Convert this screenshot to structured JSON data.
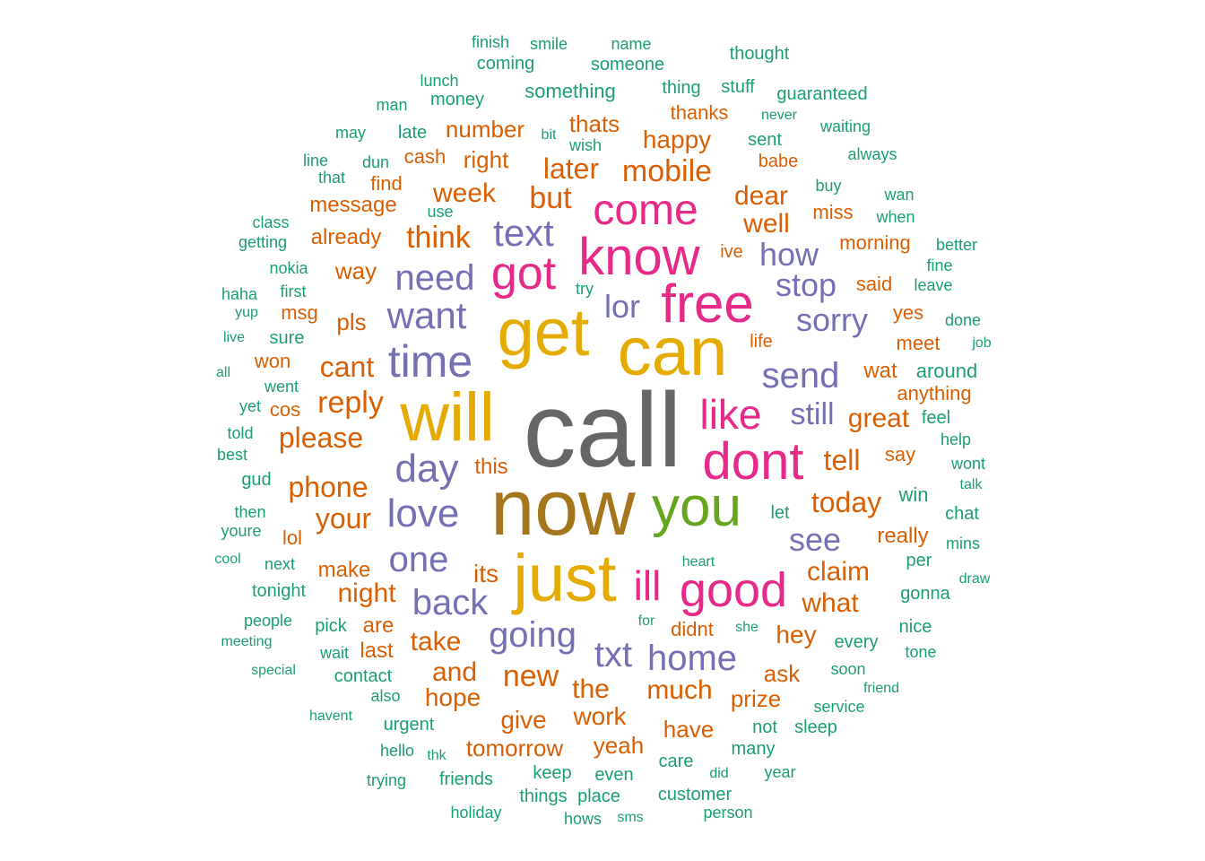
{
  "colors": {
    "c1": "#1b9e77",
    "c2": "#d95f02",
    "c3": "#7570b3",
    "c4": "#e7298a",
    "c5": "#66a61e",
    "c6": "#e6ab02",
    "c7": "#a6761d",
    "c8": "#666666"
  },
  "words": [
    {
      "text": "call",
      "color": "c8"
    },
    {
      "text": "now",
      "color": "c7"
    },
    {
      "text": "can",
      "color": "c6"
    },
    {
      "text": "get",
      "color": "c6"
    },
    {
      "text": "will",
      "color": "c6"
    },
    {
      "text": "just",
      "color": "c6"
    },
    {
      "text": "you",
      "color": "c5"
    },
    {
      "text": "free",
      "color": "c4"
    },
    {
      "text": "know",
      "color": "c4"
    },
    {
      "text": "dont",
      "color": "c4"
    },
    {
      "text": "good",
      "color": "c4"
    },
    {
      "text": "like",
      "color": "c4"
    },
    {
      "text": "got",
      "color": "c4"
    },
    {
      "text": "come",
      "color": "c4"
    },
    {
      "text": "ill",
      "color": "c4"
    },
    {
      "text": "time",
      "color": "c3"
    },
    {
      "text": "want",
      "color": "c3"
    },
    {
      "text": "need",
      "color": "c3"
    },
    {
      "text": "text",
      "color": "c3"
    },
    {
      "text": "day",
      "color": "c3"
    },
    {
      "text": "love",
      "color": "c3"
    },
    {
      "text": "one",
      "color": "c3"
    },
    {
      "text": "back",
      "color": "c3"
    },
    {
      "text": "going",
      "color": "c3"
    },
    {
      "text": "txt",
      "color": "c3"
    },
    {
      "text": "home",
      "color": "c3"
    },
    {
      "text": "send",
      "color": "c3"
    },
    {
      "text": "sorry",
      "color": "c3"
    },
    {
      "text": "stop",
      "color": "c3"
    },
    {
      "text": "how",
      "color": "c3"
    },
    {
      "text": "still",
      "color": "c3"
    },
    {
      "text": "see",
      "color": "c3"
    },
    {
      "text": "lor",
      "color": "c3"
    },
    {
      "text": "mobile",
      "color": "c2"
    },
    {
      "text": "later",
      "color": "c2"
    },
    {
      "text": "but",
      "color": "c2"
    },
    {
      "text": "think",
      "color": "c2"
    },
    {
      "text": "week",
      "color": "c2"
    },
    {
      "text": "well",
      "color": "c2"
    },
    {
      "text": "dear",
      "color": "c2"
    },
    {
      "text": "reply",
      "color": "c2"
    },
    {
      "text": "please",
      "color": "c2"
    },
    {
      "text": "cant",
      "color": "c2"
    },
    {
      "text": "phone",
      "color": "c2"
    },
    {
      "text": "your",
      "color": "c2"
    },
    {
      "text": "tell",
      "color": "c2"
    },
    {
      "text": "great",
      "color": "c2"
    },
    {
      "text": "today",
      "color": "c2"
    },
    {
      "text": "claim",
      "color": "c2"
    },
    {
      "text": "what",
      "color": "c2"
    },
    {
      "text": "night",
      "color": "c2"
    },
    {
      "text": "its",
      "color": "c2"
    },
    {
      "text": "this",
      "color": "c2"
    },
    {
      "text": "take",
      "color": "c2"
    },
    {
      "text": "hey",
      "color": "c2"
    },
    {
      "text": "new",
      "color": "c2"
    },
    {
      "text": "and",
      "color": "c2"
    },
    {
      "text": "hope",
      "color": "c2"
    },
    {
      "text": "the",
      "color": "c2"
    },
    {
      "text": "much",
      "color": "c2"
    },
    {
      "text": "give",
      "color": "c2"
    },
    {
      "text": "work",
      "color": "c2"
    },
    {
      "text": "have",
      "color": "c2"
    },
    {
      "text": "prize",
      "color": "c2"
    },
    {
      "text": "ask",
      "color": "c2"
    },
    {
      "text": "tomorrow",
      "color": "c2"
    },
    {
      "text": "yeah",
      "color": "c2"
    },
    {
      "text": "happy",
      "color": "c2"
    },
    {
      "text": "number",
      "color": "c2"
    },
    {
      "text": "thats",
      "color": "c2"
    },
    {
      "text": "right",
      "color": "c2"
    },
    {
      "text": "message",
      "color": "c2"
    },
    {
      "text": "already",
      "color": "c2"
    },
    {
      "text": "way",
      "color": "c2"
    },
    {
      "text": "pls",
      "color": "c2"
    },
    {
      "text": "msg",
      "color": "c2"
    },
    {
      "text": "thanks",
      "color": "c2"
    },
    {
      "text": "babe",
      "color": "c2"
    },
    {
      "text": "miss",
      "color": "c2"
    },
    {
      "text": "morning",
      "color": "c2"
    },
    {
      "text": "said",
      "color": "c2"
    },
    {
      "text": "yes",
      "color": "c2"
    },
    {
      "text": "meet",
      "color": "c2"
    },
    {
      "text": "wat",
      "color": "c2"
    },
    {
      "text": "anything",
      "color": "c2"
    },
    {
      "text": "say",
      "color": "c2"
    },
    {
      "text": "really",
      "color": "c2"
    },
    {
      "text": "make",
      "color": "c2"
    },
    {
      "text": "are",
      "color": "c2"
    },
    {
      "text": "last",
      "color": "c2"
    },
    {
      "text": "didnt",
      "color": "c2"
    },
    {
      "text": "cash",
      "color": "c2"
    },
    {
      "text": "find",
      "color": "c2"
    },
    {
      "text": "ive",
      "color": "c2"
    },
    {
      "text": "life",
      "color": "c2"
    },
    {
      "text": "won",
      "color": "c2"
    },
    {
      "text": "cos",
      "color": "c2"
    },
    {
      "text": "lol",
      "color": "c2"
    },
    {
      "text": "finish",
      "color": "c1"
    },
    {
      "text": "smile",
      "color": "c1"
    },
    {
      "text": "name",
      "color": "c1"
    },
    {
      "text": "thought",
      "color": "c1"
    },
    {
      "text": "coming",
      "color": "c1"
    },
    {
      "text": "someone",
      "color": "c1"
    },
    {
      "text": "lunch",
      "color": "c1"
    },
    {
      "text": "money",
      "color": "c1"
    },
    {
      "text": "something",
      "color": "c1"
    },
    {
      "text": "thing",
      "color": "c1"
    },
    {
      "text": "stuff",
      "color": "c1"
    },
    {
      "text": "guaranteed",
      "color": "c1"
    },
    {
      "text": "man",
      "color": "c1"
    },
    {
      "text": "never",
      "color": "c1"
    },
    {
      "text": "may",
      "color": "c1"
    },
    {
      "text": "late",
      "color": "c1"
    },
    {
      "text": "bit",
      "color": "c1"
    },
    {
      "text": "wish",
      "color": "c1"
    },
    {
      "text": "sent",
      "color": "c1"
    },
    {
      "text": "waiting",
      "color": "c1"
    },
    {
      "text": "line",
      "color": "c1"
    },
    {
      "text": "dun",
      "color": "c1"
    },
    {
      "text": "that",
      "color": "c1"
    },
    {
      "text": "always",
      "color": "c1"
    },
    {
      "text": "buy",
      "color": "c1"
    },
    {
      "text": "use",
      "color": "c1"
    },
    {
      "text": "wan",
      "color": "c1"
    },
    {
      "text": "class",
      "color": "c1"
    },
    {
      "text": "when",
      "color": "c1"
    },
    {
      "text": "getting",
      "color": "c1"
    },
    {
      "text": "better",
      "color": "c1"
    },
    {
      "text": "nokia",
      "color": "c1"
    },
    {
      "text": "fine",
      "color": "c1"
    },
    {
      "text": "first",
      "color": "c1"
    },
    {
      "text": "try",
      "color": "c1"
    },
    {
      "text": "haha",
      "color": "c1"
    },
    {
      "text": "leave",
      "color": "c1"
    },
    {
      "text": "yup",
      "color": "c1"
    },
    {
      "text": "done",
      "color": "c1"
    },
    {
      "text": "live",
      "color": "c1"
    },
    {
      "text": "sure",
      "color": "c1"
    },
    {
      "text": "job",
      "color": "c1"
    },
    {
      "text": "all",
      "color": "c1"
    },
    {
      "text": "around",
      "color": "c1"
    },
    {
      "text": "went",
      "color": "c1"
    },
    {
      "text": "yet",
      "color": "c1"
    },
    {
      "text": "feel",
      "color": "c1"
    },
    {
      "text": "told",
      "color": "c1"
    },
    {
      "text": "help",
      "color": "c1"
    },
    {
      "text": "best",
      "color": "c1"
    },
    {
      "text": "wont",
      "color": "c1"
    },
    {
      "text": "gud",
      "color": "c1"
    },
    {
      "text": "talk",
      "color": "c1"
    },
    {
      "text": "win",
      "color": "c1"
    },
    {
      "text": "then",
      "color": "c1"
    },
    {
      "text": "chat",
      "color": "c1"
    },
    {
      "text": "youre",
      "color": "c1"
    },
    {
      "text": "let",
      "color": "c1"
    },
    {
      "text": "mins",
      "color": "c1"
    },
    {
      "text": "cool",
      "color": "c1"
    },
    {
      "text": "next",
      "color": "c1"
    },
    {
      "text": "heart",
      "color": "c1"
    },
    {
      "text": "per",
      "color": "c1"
    },
    {
      "text": "tonight",
      "color": "c1"
    },
    {
      "text": "draw",
      "color": "c1"
    },
    {
      "text": "gonna",
      "color": "c1"
    },
    {
      "text": "people",
      "color": "c1"
    },
    {
      "text": "pick",
      "color": "c1"
    },
    {
      "text": "for",
      "color": "c1"
    },
    {
      "text": "nice",
      "color": "c1"
    },
    {
      "text": "meeting",
      "color": "c1"
    },
    {
      "text": "wait",
      "color": "c1"
    },
    {
      "text": "she",
      "color": "c1"
    },
    {
      "text": "every",
      "color": "c1"
    },
    {
      "text": "tone",
      "color": "c1"
    },
    {
      "text": "special",
      "color": "c1"
    },
    {
      "text": "contact",
      "color": "c1"
    },
    {
      "text": "soon",
      "color": "c1"
    },
    {
      "text": "also",
      "color": "c1"
    },
    {
      "text": "friend",
      "color": "c1"
    },
    {
      "text": "havent",
      "color": "c1"
    },
    {
      "text": "urgent",
      "color": "c1"
    },
    {
      "text": "service",
      "color": "c1"
    },
    {
      "text": "not",
      "color": "c1"
    },
    {
      "text": "sleep",
      "color": "c1"
    },
    {
      "text": "hello",
      "color": "c1"
    },
    {
      "text": "many",
      "color": "c1"
    },
    {
      "text": "thk",
      "color": "c1"
    },
    {
      "text": "care",
      "color": "c1"
    },
    {
      "text": "keep",
      "color": "c1"
    },
    {
      "text": "even",
      "color": "c1"
    },
    {
      "text": "did",
      "color": "c1"
    },
    {
      "text": "year",
      "color": "c1"
    },
    {
      "text": "trying",
      "color": "c1"
    },
    {
      "text": "friends",
      "color": "c1"
    },
    {
      "text": "things",
      "color": "c1"
    },
    {
      "text": "place",
      "color": "c1"
    },
    {
      "text": "customer",
      "color": "c1"
    },
    {
      "text": "holiday",
      "color": "c1"
    },
    {
      "text": "hows",
      "color": "c1"
    },
    {
      "text": "sms",
      "color": "c1"
    },
    {
      "text": "person",
      "color": "c1"
    }
  ]
}
